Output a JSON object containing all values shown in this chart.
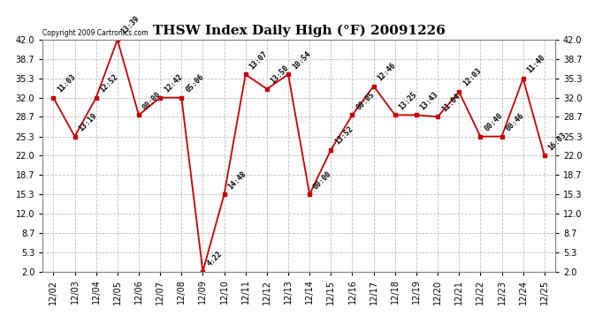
{
  "title": "THSW Index Daily High (°F) 20091226",
  "copyright": "Copyright 2009 Cartronics.com",
  "x_labels": [
    "12/02",
    "12/03",
    "12/04",
    "12/05",
    "12/06",
    "12/07",
    "12/08",
    "12/09",
    "12/10",
    "12/11",
    "12/12",
    "12/13",
    "12/14",
    "12/15",
    "12/16",
    "12/17",
    "12/18",
    "12/19",
    "12/20",
    "12/21",
    "12/22",
    "12/23",
    "12/24",
    "12/25"
  ],
  "y_values": [
    32.0,
    25.3,
    32.0,
    42.0,
    29.0,
    32.0,
    32.0,
    2.0,
    15.3,
    36.0,
    33.5,
    36.0,
    15.3,
    23.0,
    29.0,
    34.0,
    29.0,
    29.0,
    28.7,
    33.0,
    25.3,
    25.3,
    35.3,
    22.0
  ],
  "point_labels": [
    "11:03",
    "13:19",
    "12:52",
    "13:39",
    "00:00",
    "12:42",
    "05:06",
    "4:22",
    "14:48",
    "13:07",
    "13:50",
    "10:54",
    "00:00",
    "13:52",
    "00:05",
    "12:46",
    "13:25",
    "13:43",
    "11:04",
    "12:03",
    "00:40",
    "00:46",
    "11:40",
    "16:03"
  ],
  "ylim_min": 2.0,
  "ylim_max": 42.0,
  "yticks": [
    2.0,
    5.3,
    8.7,
    12.0,
    15.3,
    18.7,
    22.0,
    25.3,
    28.7,
    32.0,
    35.3,
    38.7,
    42.0
  ],
  "line_color": "#cc0000",
  "marker_color": "#cc0000",
  "bg_color": "#ffffff",
  "grid_color": "#bbbbbb",
  "title_fontsize": 11,
  "tick_fontsize": 7,
  "annot_fontsize": 6
}
